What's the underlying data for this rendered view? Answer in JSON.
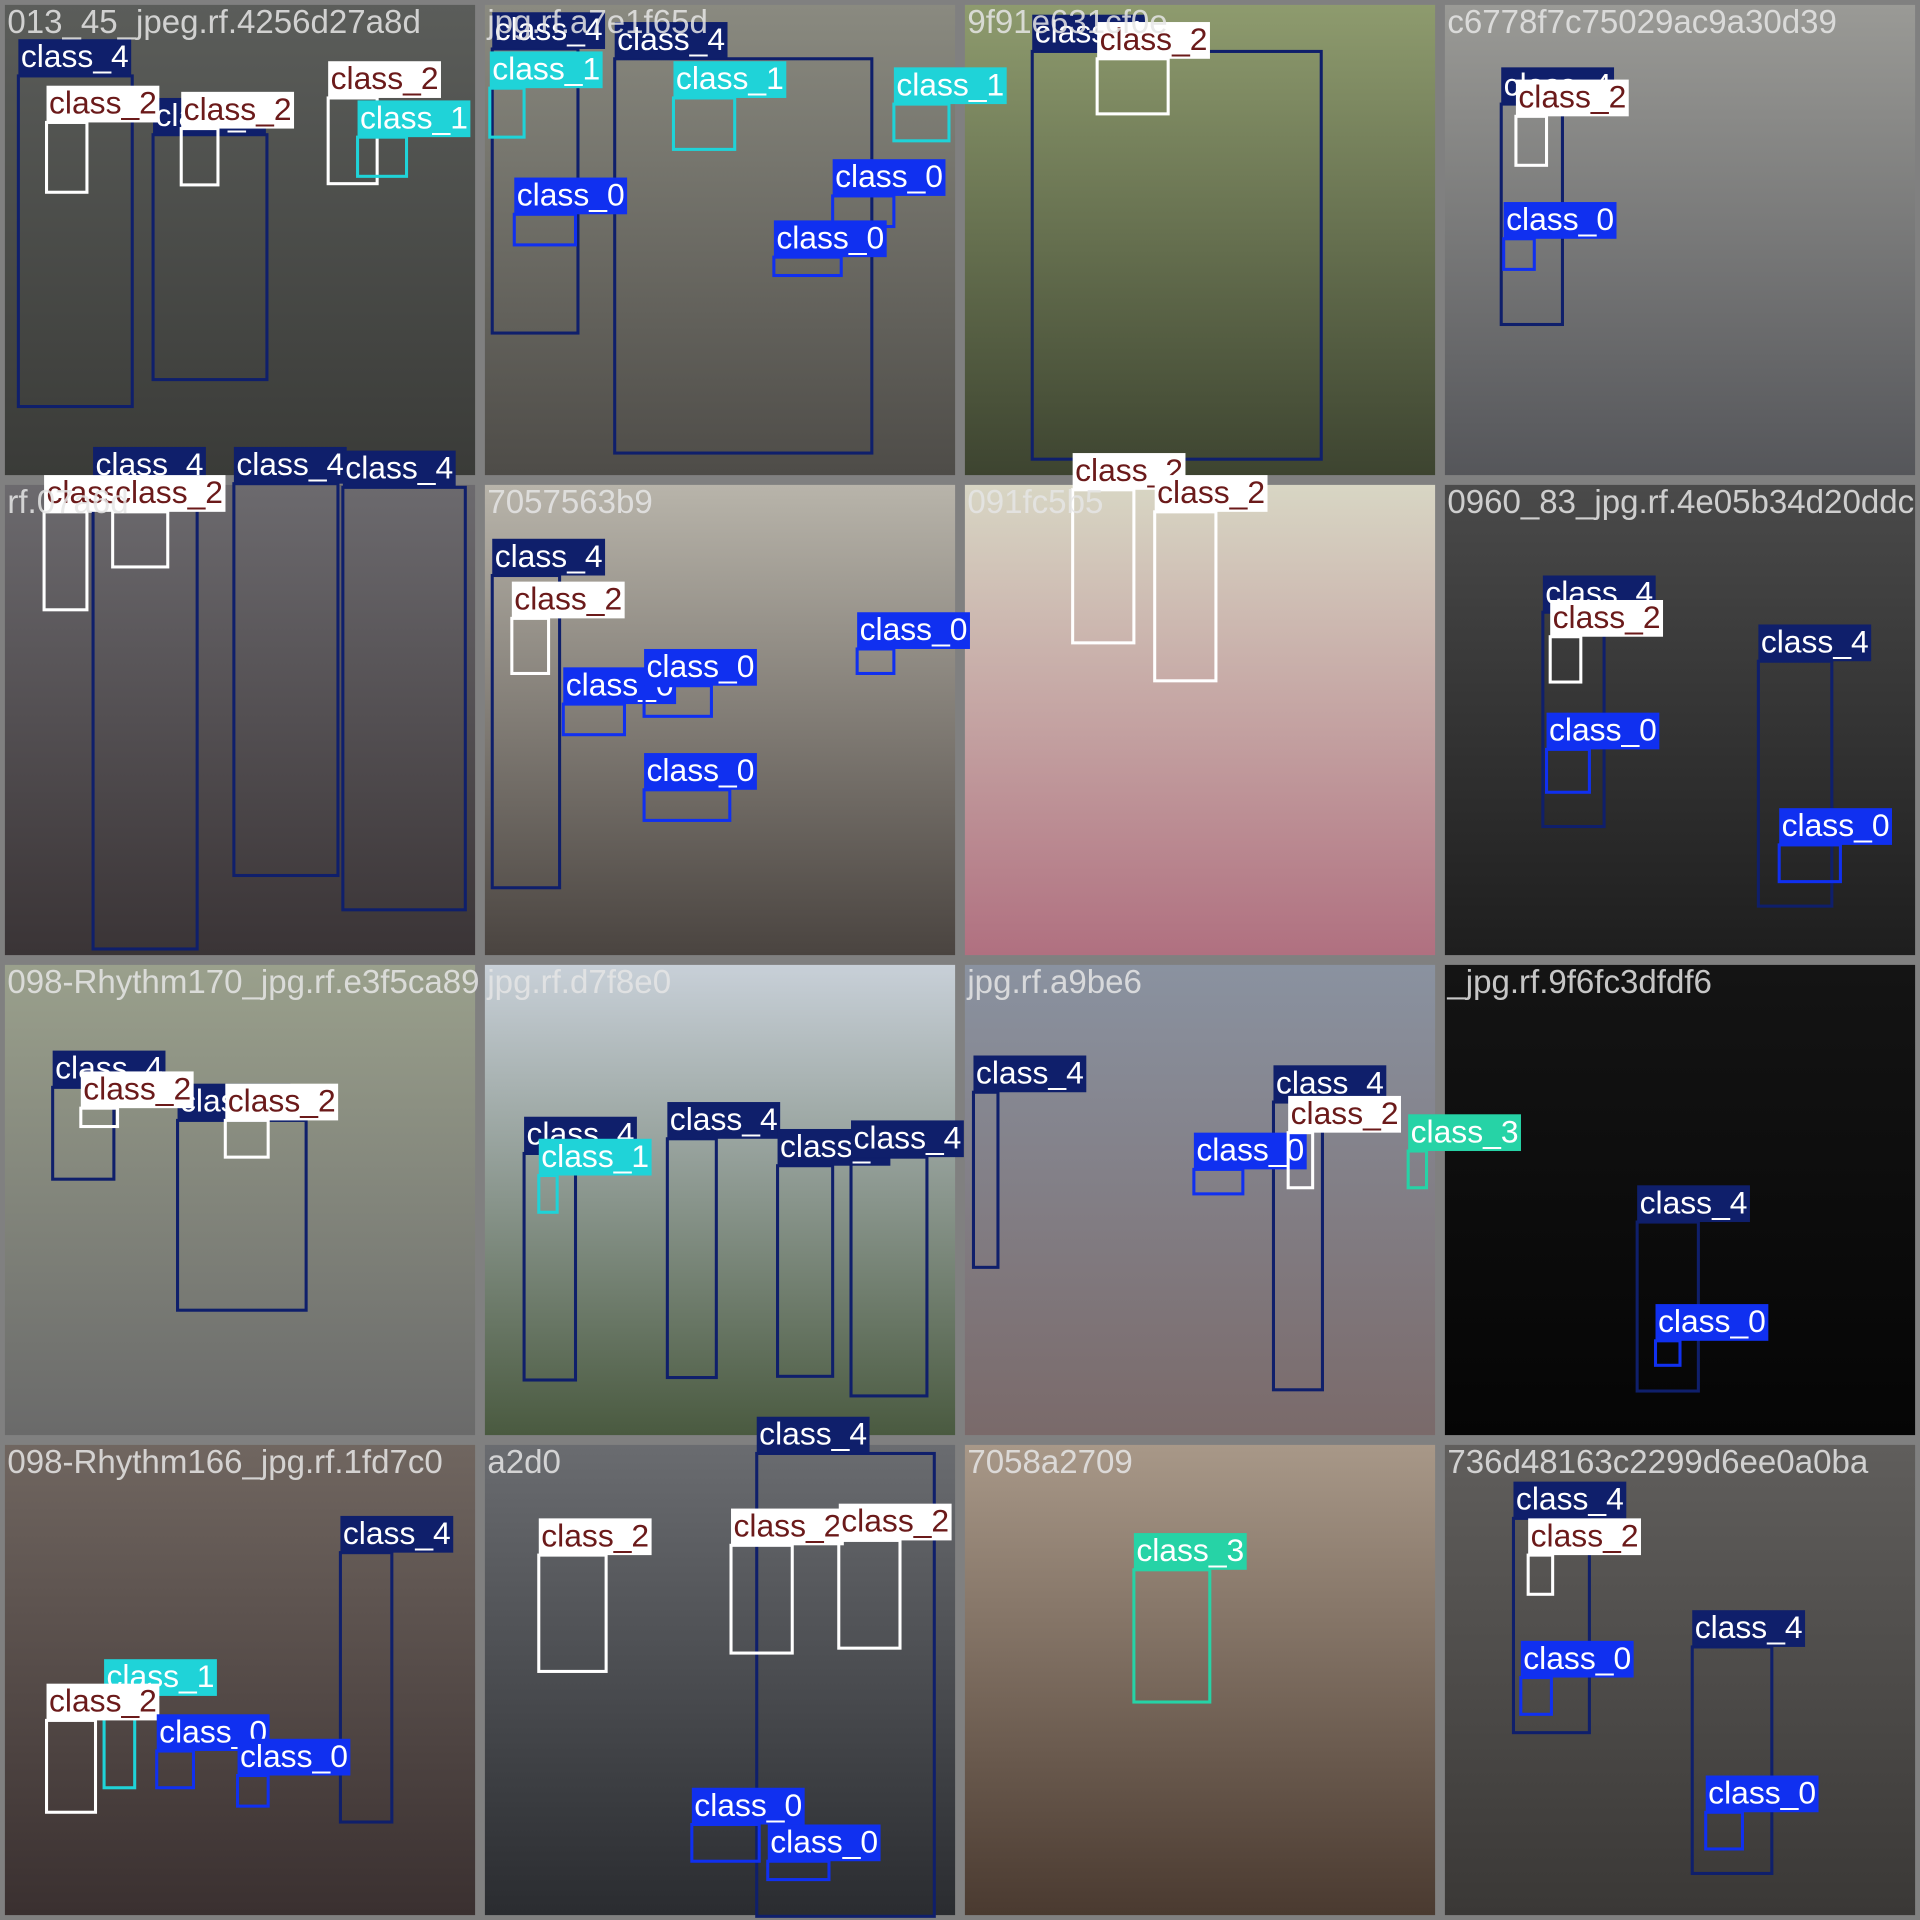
{
  "tiles": [
    {
      "filename": "013_45_jpeg.rf.4256d27a8d",
      "boxes": [
        {
          "label": "class_4",
          "color": "#0f1f6b"
        },
        {
          "label": "class_4",
          "color": "#0f1f6b"
        },
        {
          "label": "class_2",
          "color": "#ffffff"
        },
        {
          "label": "class_2",
          "color": "#ffffff"
        },
        {
          "label": "class_2",
          "color": "#ffffff"
        },
        {
          "label": "class_1",
          "color": "#1fd3d8"
        }
      ]
    },
    {
      "filename": "jpg.rf.a7e1f65d",
      "boxes": [
        {
          "label": "class_4",
          "color": "#0f1f6b"
        },
        {
          "label": "class_4",
          "color": "#0f1f6b"
        },
        {
          "label": "class_1",
          "color": "#1fd3d8"
        },
        {
          "label": "class_1",
          "color": "#1fd3d8"
        },
        {
          "label": "class_1",
          "color": "#1fd3d8"
        },
        {
          "label": "class_0",
          "color": "#1030f0"
        },
        {
          "label": "class_0",
          "color": "#1030f0"
        },
        {
          "label": "class_0",
          "color": "#1030f0"
        }
      ]
    },
    {
      "filename": "9f91e631cf0e",
      "boxes": [
        {
          "label": "class_4",
          "color": "#0f1f6b"
        },
        {
          "label": "class_2",
          "color": "#ffffff"
        }
      ]
    },
    {
      "filename": "c6778f7c75029ac9a30d39",
      "boxes": [
        {
          "label": "class_4",
          "color": "#0f1f6b"
        },
        {
          "label": "class_2",
          "color": "#ffffff"
        },
        {
          "label": "class_0",
          "color": "#1030f0"
        }
      ]
    },
    {
      "filename": "rf.07a6d",
      "boxes": [
        {
          "label": "class_4",
          "color": "#0f1f6b"
        },
        {
          "label": "class_4",
          "color": "#0f1f6b"
        },
        {
          "label": "class_4",
          "color": "#0f1f6b"
        },
        {
          "label": "class_2",
          "color": "#ffffff"
        },
        {
          "label": "class_2",
          "color": "#ffffff"
        }
      ]
    },
    {
      "filename": "7057563b9",
      "boxes": [
        {
          "label": "class_4",
          "color": "#0f1f6b"
        },
        {
          "label": "class_2",
          "color": "#ffffff"
        },
        {
          "label": "class_0",
          "color": "#1030f0"
        },
        {
          "label": "class_0",
          "color": "#1030f0"
        },
        {
          "label": "class_0",
          "color": "#1030f0"
        },
        {
          "label": "class_0",
          "color": "#1030f0"
        }
      ]
    },
    {
      "filename": "091fc5b5",
      "boxes": [
        {
          "label": "class_2",
          "color": "#ffffff"
        },
        {
          "label": "class_2",
          "color": "#ffffff"
        }
      ]
    },
    {
      "filename": "0960_83_jpg.rf.4e05b34d20ddc",
      "boxes": [
        {
          "label": "class_4",
          "color": "#0f1f6b"
        },
        {
          "label": "class_2",
          "color": "#ffffff"
        },
        {
          "label": "class_0",
          "color": "#1030f0"
        },
        {
          "label": "class_4",
          "color": "#0f1f6b"
        },
        {
          "label": "class_0",
          "color": "#1030f0"
        }
      ]
    },
    {
      "filename": "098-Rhythm170_jpg.rf.e3f5ca89",
      "boxes": [
        {
          "label": "class_4",
          "color": "#0f1f6b"
        },
        {
          "label": "class_4",
          "color": "#0f1f6b"
        },
        {
          "label": "class_2",
          "color": "#ffffff"
        },
        {
          "label": "class_2",
          "color": "#ffffff"
        }
      ]
    },
    {
      "filename": "jpg.rf.d7f8e0",
      "boxes": [
        {
          "label": "class_4",
          "color": "#0f1f6b"
        },
        {
          "label": "class_4",
          "color": "#0f1f6b"
        },
        {
          "label": "class_4",
          "color": "#0f1f6b"
        },
        {
          "label": "class_4",
          "color": "#0f1f6b"
        },
        {
          "label": "class_1",
          "color": "#1fd3d8"
        }
      ]
    },
    {
      "filename": "jpg.rf.a9be6",
      "boxes": [
        {
          "label": "class_4",
          "color": "#0f1f6b"
        },
        {
          "label": "class_4",
          "color": "#0f1f6b"
        },
        {
          "label": "class_0",
          "color": "#1030f0"
        },
        {
          "label": "class_2",
          "color": "#ffffff"
        },
        {
          "label": "class_3",
          "color": "#26d3a6"
        }
      ]
    },
    {
      "filename": "_jpg.rf.9f6fc3dfdf6",
      "boxes": [
        {
          "label": "class_4",
          "color": "#0f1f6b"
        },
        {
          "label": "class_0",
          "color": "#1030f0"
        }
      ]
    },
    {
      "filename": "098-Rhythm166_jpg.rf.1fd7c0",
      "boxes": [
        {
          "label": "class_4",
          "color": "#0f1f6b"
        },
        {
          "label": "class_1",
          "color": "#1fd3d8"
        },
        {
          "label": "class_2",
          "color": "#ffffff"
        },
        {
          "label": "class_0",
          "color": "#1030f0"
        },
        {
          "label": "class_0",
          "color": "#1030f0"
        }
      ]
    },
    {
      "filename": "a2d0",
      "boxes": [
        {
          "label": "class_4",
          "color": "#0f1f6b"
        },
        {
          "label": "class_2",
          "color": "#ffffff"
        },
        {
          "label": "class_2",
          "color": "#ffffff"
        },
        {
          "label": "class_2",
          "color": "#ffffff"
        },
        {
          "label": "class_0",
          "color": "#1030f0"
        },
        {
          "label": "class_0",
          "color": "#1030f0"
        }
      ]
    },
    {
      "filename": "7058a2709",
      "boxes": [
        {
          "label": "class_3",
          "color": "#26d3a6"
        }
      ]
    },
    {
      "filename": "736d48163c2299d6ee0a0ba",
      "boxes": [
        {
          "label": "class_4",
          "color": "#0f1f6b"
        },
        {
          "label": "class_2",
          "color": "#ffffff"
        },
        {
          "label": "class_0",
          "color": "#1030f0"
        },
        {
          "label": "class_4",
          "color": "#0f1f6b"
        },
        {
          "label": "class_0",
          "color": "#1030f0"
        }
      ]
    }
  ]
}
